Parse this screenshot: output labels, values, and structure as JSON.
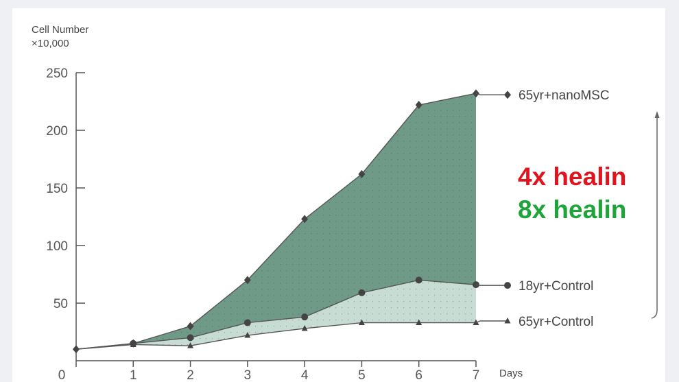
{
  "chart_data": {
    "type": "line",
    "ylabel_line1": "Cell Number",
    "ylabel_line2": "×10,000",
    "xlabel": "Days",
    "x": [
      0,
      1,
      2,
      3,
      4,
      5,
      6,
      7
    ],
    "xlim": [
      0,
      7
    ],
    "ylim": [
      0,
      250
    ],
    "yticks": [
      50,
      100,
      150,
      200,
      250
    ],
    "grid": false,
    "series": [
      {
        "name": "65yr+nanoMSC",
        "marker": "diamond",
        "values": [
          10,
          15,
          30,
          70,
          123,
          162,
          222,
          232
        ]
      },
      {
        "name": "18yr+Control",
        "marker": "circle",
        "values": [
          10,
          15,
          20,
          33,
          38,
          59,
          70,
          66
        ]
      },
      {
        "name": "65yr+Control",
        "marker": "triangle",
        "values": [
          10,
          14,
          13,
          22,
          28,
          33,
          33,
          33
        ]
      }
    ],
    "annotations": [
      {
        "text": "4x healin",
        "color": "#e0141e"
      },
      {
        "text": "8x healin",
        "color": "#1fa43a"
      }
    ],
    "colors": {
      "band_upper": "#6f9a88",
      "band_lower": "#c7ddd3",
      "line": "#555555",
      "marker": "#444444",
      "axis": "#555555"
    }
  }
}
